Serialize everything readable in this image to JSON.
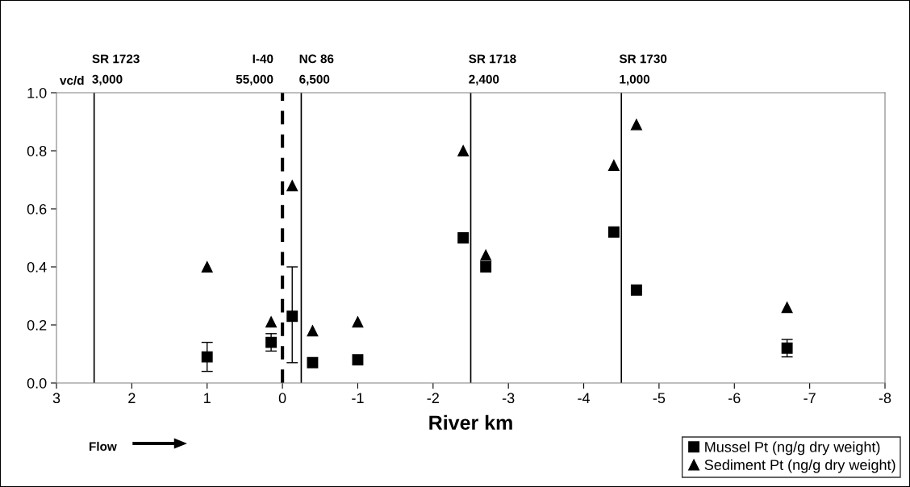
{
  "chart_data": {
    "type": "scatter",
    "xlabel": "River km",
    "xlim": [
      3,
      -8
    ],
    "xticks": [
      3,
      2,
      1,
      0,
      -1,
      -2,
      -3,
      -4,
      -5,
      -6,
      -7,
      -8
    ],
    "ylim": [
      0,
      1.0
    ],
    "yticks": [
      {
        "value": 0,
        "label": "0.0"
      },
      {
        "value": 0.2,
        "label": "0.2"
      },
      {
        "value": 0.4,
        "label": "0.4"
      },
      {
        "value": 0.6,
        "label": "0.6"
      },
      {
        "value": 0.8,
        "label": "0.8"
      },
      {
        "value": 1.0,
        "label": "1.0"
      }
    ],
    "grid": false,
    "legend": "bottom right",
    "series": [
      {
        "name": "Mussel Pt (ng/g dry weight)",
        "color": "#000000",
        "marker": "square",
        "x": [
          1,
          0.15,
          -0.13,
          -0.4,
          -1,
          -2.4,
          -2.7,
          -4.4,
          -4.7,
          -6.7
        ],
        "values": [
          0.09,
          0.14,
          0.23,
          0.07,
          0.08,
          0.5,
          0.4,
          0.52,
          0.32,
          0.12
        ],
        "errors": [
          [
            0.04,
            0.14
          ],
          [
            0.11,
            0.17
          ],
          [
            0.07,
            0.4
          ],
          null,
          null,
          null,
          null,
          null,
          null,
          [
            0.09,
            0.15
          ]
        ]
      },
      {
        "name": "Sediment Pt (ng/g dry weight)",
        "color": "#000000",
        "marker": "triangle",
        "x": [
          1,
          0.15,
          -0.13,
          -0.4,
          -1,
          -2.4,
          -2.7,
          -4.4,
          -4.7,
          -6.7
        ],
        "values": [
          0.4,
          0.21,
          0.68,
          0.18,
          0.21,
          0.8,
          0.44,
          0.75,
          0.89,
          0.26
        ]
      }
    ],
    "ref_lines": [
      {
        "axis": "x",
        "value": 2.5,
        "label": "SR 1723\n3,000",
        "color": "#000000",
        "line_style": "solid"
      },
      {
        "axis": "x",
        "value": 0,
        "label": "I-40\n55,000",
        "color": "#000000",
        "line_style": "dashed"
      },
      {
        "axis": "x",
        "value": -0.25,
        "label": "NC 86\n6,500",
        "color": "#000000",
        "line_style": "solid"
      },
      {
        "axis": "x",
        "value": -2.5,
        "label": "SR 1718\n2,400",
        "color": "#000000",
        "line_style": "solid"
      },
      {
        "axis": "x",
        "value": -4.5,
        "label": "SR 1730\n1,000",
        "color": "#000000",
        "line_style": "solid"
      }
    ],
    "annotations": [
      "vc/d",
      "Flow"
    ]
  }
}
